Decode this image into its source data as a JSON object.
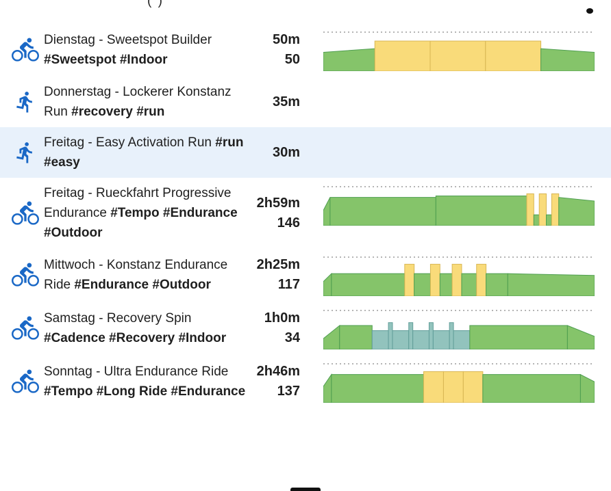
{
  "header": {
    "cropped_text": "( )"
  },
  "colors": {
    "g_fill": "#85c46a",
    "g_stroke": "#4e9e50",
    "y_fill": "#f9db7a",
    "y_stroke": "#d8b654",
    "t_fill": "#92c3bd",
    "t_stroke": "#619e99",
    "icon_blue": "#1a68c6",
    "selected_bg": "#e8f1fb",
    "dotted_line": "#b4b4b4"
  },
  "workouts": [
    {
      "sport": "ride",
      "name": "Dienstag - Sweetspot Builder",
      "tags": "#Sweetspot #Indoor",
      "duration": "50m",
      "load": "50",
      "selected": false,
      "chart": {
        "dotted": true,
        "bars": [
          [
            19,
            52,
            62,
            "g"
          ],
          [
            20.4,
            83,
            83,
            "y"
          ],
          [
            20.4,
            83,
            83,
            "y"
          ],
          [
            20.4,
            83,
            83,
            "y"
          ],
          [
            19.8,
            62,
            52,
            "g"
          ]
        ]
      }
    },
    {
      "sport": "run",
      "name": "Donnerstag - Lockerer Konstanz Run",
      "tags": "#recovery #run",
      "duration": "35m",
      "load": "",
      "selected": false,
      "chart": null
    },
    {
      "sport": "run",
      "name": "Freitag - Easy Activation Run",
      "tags": "#run #easy",
      "duration": "30m",
      "load": "",
      "selected": true,
      "chart": null
    },
    {
      "sport": "ride",
      "name": "Freitag - Rueckfahrt Progressive Endurance",
      "tags": "#Tempo #Endurance #Outdoor",
      "duration": "2h59m",
      "load": "146",
      "selected": false,
      "chart": {
        "dotted": true,
        "bars": [
          [
            2.5,
            42,
            78,
            "g"
          ],
          [
            39,
            78,
            78,
            "g"
          ],
          [
            33.5,
            82,
            82,
            "g"
          ],
          [
            2.6,
            88,
            88,
            "y"
          ],
          [
            2,
            30,
            30,
            "g"
          ],
          [
            2.6,
            88,
            88,
            "y"
          ],
          [
            2,
            30,
            30,
            "g"
          ],
          [
            2.6,
            88,
            88,
            "y"
          ],
          [
            13.2,
            78,
            68,
            "g"
          ]
        ]
      }
    },
    {
      "sport": "ride",
      "name": "Mittwoch - Konstanz Endurance Ride",
      "tags": "#Endurance #Outdoor",
      "duration": "2h25m",
      "load": "117",
      "selected": false,
      "chart": {
        "dotted": true,
        "bars": [
          [
            3,
            40,
            62,
            "g"
          ],
          [
            27,
            62,
            62,
            "g"
          ],
          [
            3.5,
            88,
            88,
            "y"
          ],
          [
            6,
            62,
            62,
            "g"
          ],
          [
            3.5,
            88,
            88,
            "y"
          ],
          [
            4.5,
            62,
            62,
            "g"
          ],
          [
            3.5,
            88,
            88,
            "y"
          ],
          [
            5.5,
            62,
            62,
            "g"
          ],
          [
            3.5,
            88,
            88,
            "y"
          ],
          [
            8,
            62,
            62,
            "g"
          ],
          [
            32,
            62,
            57,
            "g"
          ]
        ]
      }
    },
    {
      "sport": "ride",
      "name": "Samstag - Recovery Spin",
      "tags": "#Cadence #Recovery #Indoor",
      "duration": "1h0m",
      "load": "34",
      "selected": false,
      "chart": {
        "dotted": true,
        "bars": [
          [
            6,
            30,
            66,
            "g"
          ],
          [
            12,
            66,
            66,
            "g"
          ],
          [
            6,
            52,
            52,
            "t"
          ],
          [
            1.5,
            74,
            74,
            "t"
          ],
          [
            6,
            52,
            52,
            "t"
          ],
          [
            1.5,
            74,
            74,
            "t"
          ],
          [
            6,
            52,
            52,
            "t"
          ],
          [
            1.5,
            74,
            74,
            "t"
          ],
          [
            6,
            52,
            52,
            "t"
          ],
          [
            1.5,
            74,
            74,
            "t"
          ],
          [
            6,
            52,
            52,
            "t"
          ],
          [
            36,
            66,
            66,
            "g"
          ],
          [
            10,
            66,
            36,
            "g"
          ]
        ]
      }
    },
    {
      "sport": "ride",
      "name": "Sonntag - Ultra Endurance Ride",
      "tags": "#Tempo #Long Ride #Endurance",
      "duration": "2h46m",
      "load": "137",
      "selected": false,
      "chart": {
        "dotted": true,
        "bars": [
          [
            3,
            45,
            78,
            "g"
          ],
          [
            34,
            78,
            78,
            "g"
          ],
          [
            7.3,
            86,
            86,
            "y"
          ],
          [
            7.3,
            86,
            86,
            "y"
          ],
          [
            7.2,
            86,
            86,
            "y"
          ],
          [
            36,
            78,
            78,
            "g"
          ],
          [
            5.2,
            78,
            58,
            "g"
          ]
        ]
      }
    }
  ]
}
